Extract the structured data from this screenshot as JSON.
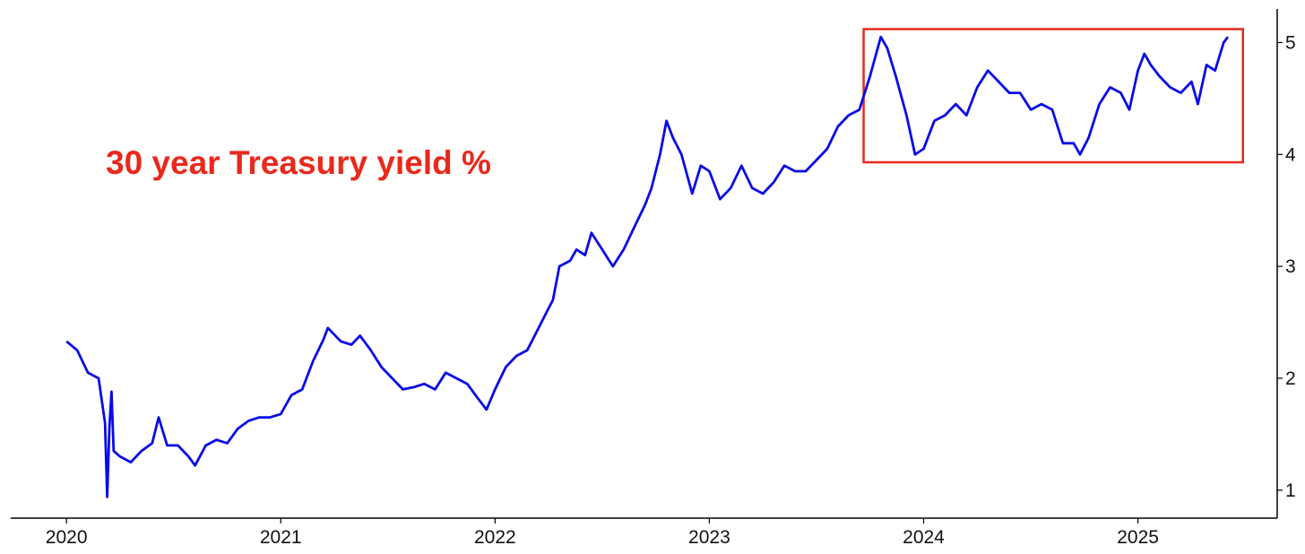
{
  "chart_data": {
    "type": "line",
    "annotation": "30 year Treasury yield %",
    "x": [
      2020.0,
      2020.05,
      2020.1,
      2020.15,
      2020.18,
      2020.19,
      2020.2,
      2020.21,
      2020.22,
      2020.25,
      2020.3,
      2020.35,
      2020.4,
      2020.43,
      2020.47,
      2020.52,
      2020.57,
      2020.6,
      2020.65,
      2020.7,
      2020.75,
      2020.8,
      2020.85,
      2020.9,
      2020.95,
      2021.0,
      2021.05,
      2021.1,
      2021.15,
      2021.2,
      2021.22,
      2021.28,
      2021.33,
      2021.37,
      2021.42,
      2021.47,
      2021.52,
      2021.57,
      2021.62,
      2021.67,
      2021.72,
      2021.77,
      2021.82,
      2021.87,
      2021.92,
      2021.96,
      2022.0,
      2022.05,
      2022.1,
      2022.15,
      2022.19,
      2022.23,
      2022.27,
      2022.3,
      2022.35,
      2022.38,
      2022.42,
      2022.45,
      2022.5,
      2022.55,
      2022.6,
      2022.65,
      2022.7,
      2022.73,
      2022.77,
      2022.8,
      2022.83,
      2022.87,
      2022.92,
      2022.96,
      2023.0,
      2023.05,
      2023.1,
      2023.15,
      2023.2,
      2023.25,
      2023.3,
      2023.35,
      2023.4,
      2023.45,
      2023.5,
      2023.55,
      2023.6,
      2023.65,
      2023.7,
      2023.75,
      2023.8,
      2023.83,
      2023.87,
      2023.92,
      2023.96,
      2024.0,
      2024.05,
      2024.1,
      2024.15,
      2024.2,
      2024.25,
      2024.3,
      2024.35,
      2024.4,
      2024.45,
      2024.5,
      2024.55,
      2024.6,
      2024.65,
      2024.7,
      2024.73,
      2024.77,
      2024.82,
      2024.87,
      2024.92,
      2024.96,
      2025.0,
      2025.03,
      2025.06,
      2025.1,
      2025.15,
      2025.2,
      2025.25,
      2025.28,
      2025.32,
      2025.36,
      2025.4,
      2025.42
    ],
    "values": [
      2.33,
      2.25,
      2.05,
      2.0,
      1.6,
      0.94,
      1.55,
      1.88,
      1.35,
      1.3,
      1.25,
      1.35,
      1.42,
      1.65,
      1.4,
      1.4,
      1.3,
      1.22,
      1.4,
      1.45,
      1.42,
      1.55,
      1.62,
      1.65,
      1.65,
      1.68,
      1.85,
      1.9,
      2.15,
      2.35,
      2.45,
      2.33,
      2.3,
      2.38,
      2.25,
      2.1,
      2.0,
      1.9,
      1.92,
      1.95,
      1.9,
      2.05,
      2.0,
      1.95,
      1.82,
      1.72,
      1.9,
      2.1,
      2.2,
      2.25,
      2.4,
      2.55,
      2.7,
      3.0,
      3.05,
      3.15,
      3.1,
      3.3,
      3.15,
      3.0,
      3.15,
      3.35,
      3.55,
      3.7,
      4.0,
      4.3,
      4.15,
      4.0,
      3.65,
      3.9,
      3.85,
      3.6,
      3.7,
      3.9,
      3.7,
      3.65,
      3.75,
      3.9,
      3.85,
      3.85,
      3.95,
      4.05,
      4.25,
      4.35,
      4.4,
      4.7,
      5.05,
      4.95,
      4.7,
      4.35,
      4.0,
      4.05,
      4.3,
      4.35,
      4.45,
      4.35,
      4.6,
      4.75,
      4.65,
      4.55,
      4.55,
      4.4,
      4.45,
      4.4,
      4.1,
      4.1,
      4.0,
      4.15,
      4.45,
      4.6,
      4.55,
      4.4,
      4.75,
      4.9,
      4.8,
      4.7,
      4.6,
      4.55,
      4.65,
      4.45,
      4.8,
      4.75,
      5.0,
      5.05
    ],
    "color": "#0a0ae8",
    "xlim": [
      2019.74,
      2025.65
    ],
    "xticks": [
      2020,
      2021,
      2022,
      2023,
      2024,
      2025
    ],
    "ylim": [
      0.75,
      5.3
    ],
    "yticks": [
      1,
      2,
      3,
      4,
      5
    ],
    "highlight_box": {
      "xlim": [
        2023.72,
        2025.49
      ],
      "ylim": [
        3.93,
        5.12
      ],
      "color": "#e8291c"
    }
  }
}
